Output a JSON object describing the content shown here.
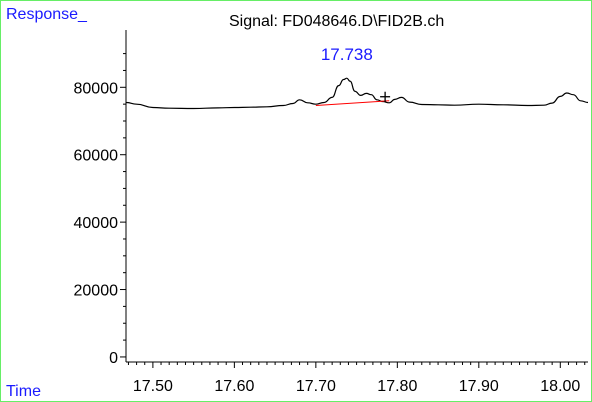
{
  "chart_data": {
    "type": "line",
    "title": "Signal: FD048646.D\\FID2B.ch",
    "ylabel": "Response_",
    "xlabel": "Time",
    "xlim": [
      17.467,
      18.034
    ],
    "ylim": [
      -1500,
      97000
    ],
    "yticks": [
      0,
      20000,
      40000,
      60000,
      80000
    ],
    "xticks": [
      17.5,
      17.6,
      17.7,
      17.8,
      17.9,
      18.0
    ],
    "xtick_labels": [
      "17.50",
      "17.60",
      "17.70",
      "17.80",
      "17.90",
      "18.00"
    ],
    "ytick_labels": [
      "0",
      "20000",
      "40000",
      "60000",
      "80000"
    ],
    "grid": false,
    "series": [
      {
        "color": "#000000",
        "x": [
          17.467,
          17.48,
          17.5,
          17.52,
          17.55,
          17.58,
          17.6,
          17.62,
          17.64,
          17.66,
          17.672,
          17.68,
          17.69,
          17.7,
          17.71,
          17.72,
          17.728,
          17.734,
          17.738,
          17.742,
          17.748,
          17.755,
          17.762,
          17.768,
          17.775,
          17.782,
          17.79,
          17.797,
          17.805,
          17.815,
          17.83,
          17.85,
          17.87,
          17.9,
          17.93,
          17.96,
          17.98,
          17.99,
          18.0,
          18.008,
          18.016,
          18.025,
          18.034
        ],
        "y": [
          75500,
          75000,
          74000,
          73800,
          73700,
          73900,
          74000,
          74100,
          74200,
          74600,
          75200,
          76300,
          75400,
          75000,
          75500,
          77000,
          80500,
          82300,
          82700,
          81800,
          78800,
          77600,
          78200,
          77800,
          76300,
          75800,
          75400,
          76400,
          77000,
          75600,
          74900,
          74800,
          74700,
          75000,
          74800,
          74600,
          74700,
          75300,
          77300,
          78300,
          77800,
          76000,
          75500
        ]
      }
    ],
    "baseline": {
      "color": "#ff0000",
      "x": [
        17.7,
        17.79
      ],
      "y": [
        74600,
        76000
      ]
    },
    "annotations": [
      {
        "text": "17.738",
        "x": 17.738,
        "y": 82700,
        "color": "#1a1aff"
      }
    ],
    "markers": [
      {
        "symbol": "+",
        "x": 17.785,
        "y": 77200
      }
    ]
  }
}
